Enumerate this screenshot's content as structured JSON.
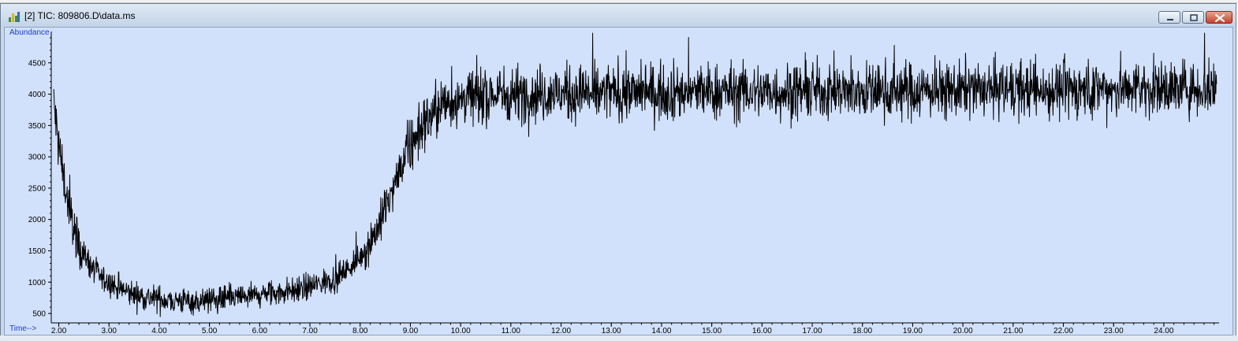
{
  "window": {
    "title": "[2] TIC: 809806.D\\data.ms",
    "icon": "chromatogram-app-icon",
    "controls": [
      "minimize-icon",
      "maximize-icon",
      "close-icon"
    ]
  },
  "chart_data": {
    "type": "line",
    "ylabel": "Abundance",
    "xlabel": "Time-->",
    "xlim": [
      1.85,
      25.1
    ],
    "ylim": [
      350,
      5000
    ],
    "xticks": [
      "2.00",
      "3.00",
      "4.00",
      "5.00",
      "6.00",
      "7.00",
      "8.00",
      "9.00",
      "10.00",
      "11.00",
      "12.00",
      "13.00",
      "14.00",
      "15.00",
      "16.00",
      "17.00",
      "18.00",
      "19.00",
      "20.00",
      "21.00",
      "22.00",
      "23.00",
      "24.00"
    ],
    "yticks": [
      "500",
      "1000",
      "1500",
      "2000",
      "2500",
      "3000",
      "3500",
      "4000",
      "4500"
    ],
    "grid": false,
    "series": [
      {
        "color": "#000000",
        "noise_note": "dense noisy trace; baseline values below",
        "x": [
          1.9,
          1.95,
          2.0,
          2.1,
          2.2,
          2.3,
          2.4,
          2.6,
          2.8,
          3.0,
          3.25,
          3.5,
          3.75,
          4.0,
          4.25,
          4.5,
          4.75,
          5.0,
          5.25,
          5.5,
          5.75,
          6.0,
          6.25,
          6.5,
          6.75,
          7.0,
          7.25,
          7.5,
          7.75,
          8.0,
          8.2,
          8.4,
          8.6,
          8.8,
          9.0,
          9.2,
          9.4,
          9.6,
          9.8,
          10.0,
          10.25,
          10.5,
          10.75,
          11.0,
          11.5,
          12.0,
          12.5,
          13.0,
          13.5,
          14.0,
          15.0,
          16.0,
          17.0,
          18.0,
          19.0,
          20.0,
          21.0,
          22.0,
          23.0,
          24.0,
          25.0
        ],
        "y": [
          3850,
          3500,
          3150,
          2650,
          2200,
          1850,
          1600,
          1300,
          1100,
          980,
          880,
          800,
          760,
          730,
          710,
          700,
          700,
          710,
          730,
          750,
          770,
          790,
          820,
          850,
          880,
          930,
          990,
          1070,
          1200,
          1400,
          1650,
          1950,
          2350,
          2800,
          3150,
          3450,
          3650,
          3800,
          3880,
          3930,
          3960,
          3980,
          3990,
          4000,
          4010,
          4010,
          4020,
          4020,
          4030,
          4030,
          4040,
          4040,
          4050,
          4050,
          4060,
          4060,
          4070,
          4070,
          4080,
          4090,
          4100
        ]
      }
    ]
  }
}
